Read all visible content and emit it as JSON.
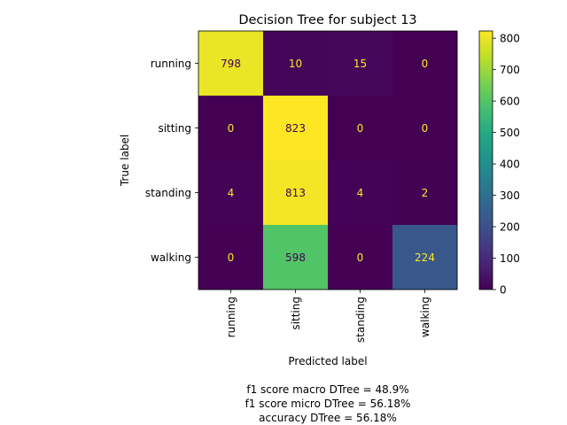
{
  "chart_data": {
    "type": "heatmap",
    "title": "Decision Tree for subject 13",
    "xlabel": "Predicted label",
    "ylabel": "True label",
    "x_categories": [
      "running",
      "sitting",
      "standing",
      "walking"
    ],
    "y_categories": [
      "running",
      "sitting",
      "standing",
      "walking"
    ],
    "matrix": [
      [
        798,
        10,
        15,
        0
      ],
      [
        0,
        823,
        0,
        0
      ],
      [
        4,
        813,
        4,
        2
      ],
      [
        0,
        598,
        0,
        224
      ]
    ],
    "color_range": [
      0,
      823
    ],
    "colormap": "viridis",
    "colorbar_ticks": [
      0,
      100,
      200,
      300,
      400,
      500,
      600,
      700,
      800
    ],
    "footer_lines": [
      "f1 score macro DTree = 48.9%",
      "f1 score micro DTree = 56.18%",
      "accuracy DTree = 56.18%"
    ]
  }
}
